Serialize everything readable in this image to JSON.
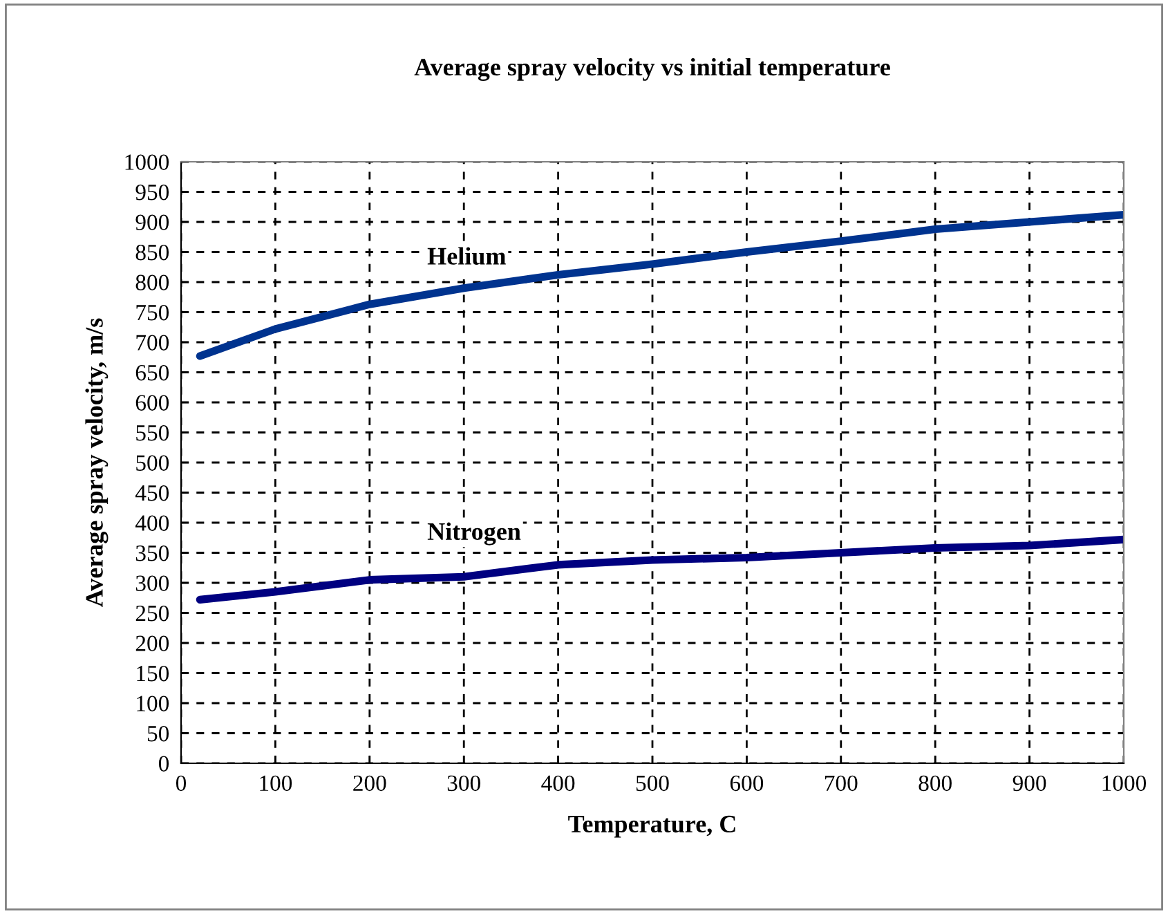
{
  "chart_data": {
    "type": "line",
    "title": "Average spray velocity vs initial temperature",
    "xlabel": "Temperature, C",
    "ylabel": "Average spray velocity, m/s",
    "x": [
      20,
      100,
      200,
      300,
      400,
      500,
      600,
      700,
      800,
      900,
      1000
    ],
    "series": [
      {
        "name": "Helium",
        "color": "#00338f",
        "values": [
          677,
          722,
          763,
          790,
          812,
          830,
          850,
          868,
          888,
          900,
          912
        ]
      },
      {
        "name": "Nitrogen",
        "color": "#000080",
        "values": [
          272,
          285,
          305,
          310,
          330,
          338,
          342,
          350,
          358,
          362,
          372
        ]
      }
    ],
    "xlim": [
      0,
      1000
    ],
    "xticks": [
      0,
      100,
      200,
      300,
      400,
      500,
      600,
      700,
      800,
      900,
      1000
    ],
    "ylim": [
      0,
      1000
    ],
    "yticks": [
      0,
      50,
      100,
      150,
      200,
      250,
      300,
      350,
      400,
      450,
      500,
      550,
      600,
      650,
      700,
      750,
      800,
      850,
      900,
      950,
      1000
    ],
    "grid": true,
    "line_style": "solid",
    "marker": "none"
  }
}
